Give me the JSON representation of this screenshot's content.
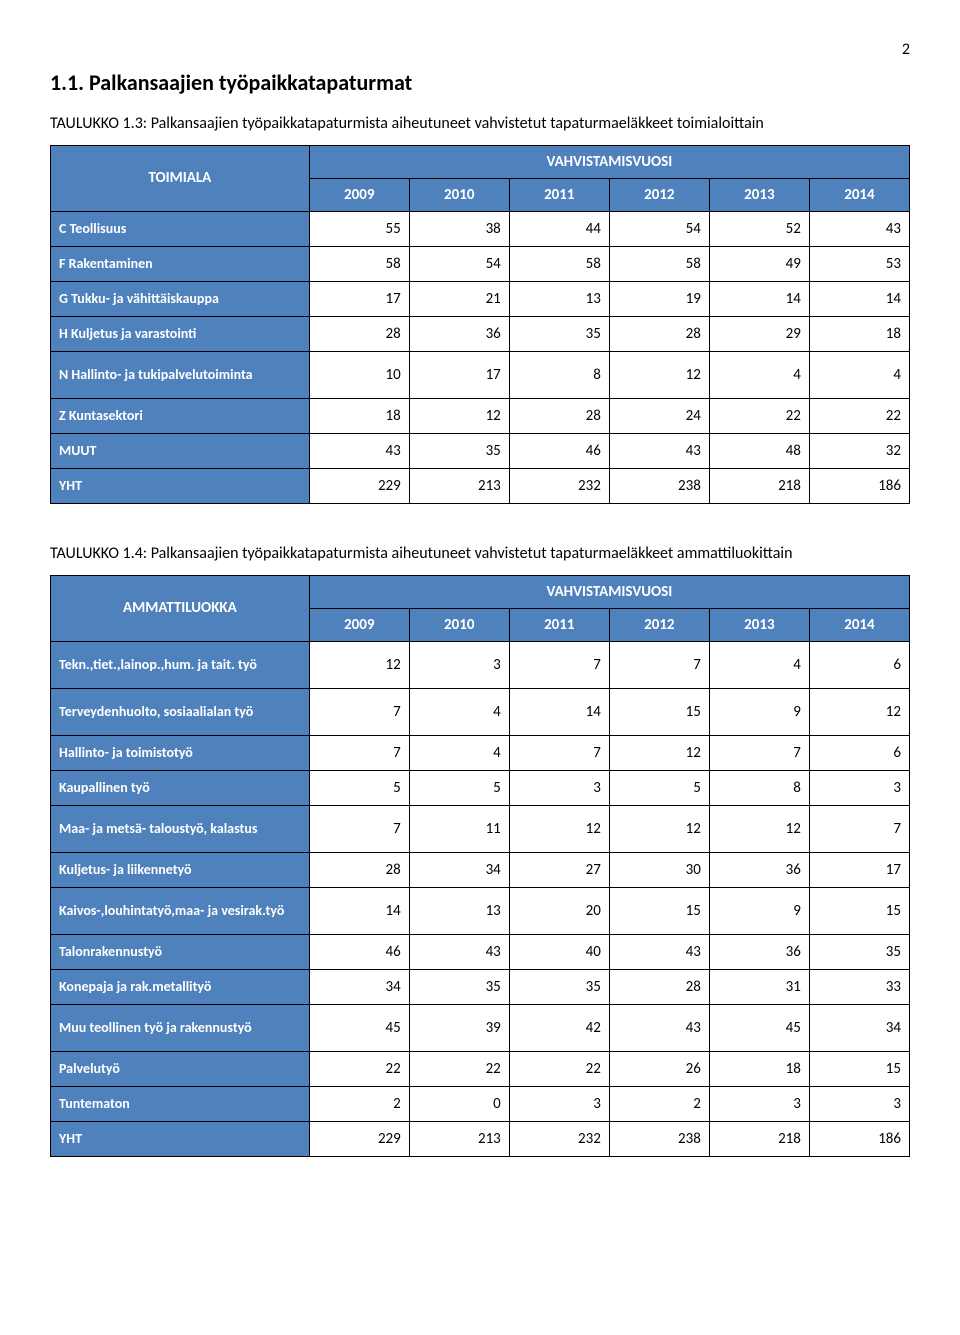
{
  "page_number": "2",
  "section_title": "1.1. Palkansaajien työpaikkatapaturmat",
  "table1": {
    "caption": "TAULUKKO 1.3: Palkansaajien työpaikkatapaturmista aiheutuneet vahvistetut tapaturmaeläkkeet toimialoittain",
    "row_header": "TOIMIALA",
    "group_header": "VAHVISTAMISVUOSI",
    "years": [
      "2009",
      "2010",
      "2011",
      "2012",
      "2013",
      "2014"
    ],
    "rows": [
      {
        "label": "C Teollisuus",
        "vals": [
          "55",
          "38",
          "44",
          "54",
          "52",
          "43"
        ]
      },
      {
        "label": "F Rakentaminen",
        "vals": [
          "58",
          "54",
          "58",
          "58",
          "49",
          "53"
        ]
      },
      {
        "label": "G Tukku- ja vähittäiskauppa",
        "vals": [
          "17",
          "21",
          "13",
          "19",
          "14",
          "14"
        ]
      },
      {
        "label": "H Kuljetus ja varastointi",
        "vals": [
          "28",
          "36",
          "35",
          "28",
          "29",
          "18"
        ]
      },
      {
        "label": "N Hallinto- ja tukipalvelutoiminta",
        "vals": [
          "10",
          "17",
          "8",
          "12",
          "4",
          "4"
        ],
        "tall": true
      },
      {
        "label": "Z Kuntasektori",
        "vals": [
          "18",
          "12",
          "28",
          "24",
          "22",
          "22"
        ]
      },
      {
        "label": "MUUT",
        "vals": [
          "43",
          "35",
          "46",
          "43",
          "48",
          "32"
        ]
      },
      {
        "label": "YHT",
        "vals": [
          "229",
          "213",
          "232",
          "238",
          "218",
          "186"
        ]
      }
    ]
  },
  "table2": {
    "caption": "TAULUKKO 1.4: Palkansaajien työpaikkatapaturmista aiheutuneet vahvistetut tapaturmaeläkkeet ammattiluokittain",
    "row_header": "AMMATTILUOKKA",
    "group_header": "VAHVISTAMISVUOSI",
    "years": [
      "2009",
      "2010",
      "2011",
      "2012",
      "2013",
      "2014"
    ],
    "rows": [
      {
        "label": "Tekn.,tiet.,lainop.,hum. ja tait. työ",
        "vals": [
          "12",
          "3",
          "7",
          "7",
          "4",
          "6"
        ],
        "tall": true
      },
      {
        "label": "Terveydenhuolto, sosiaalialan työ",
        "vals": [
          "7",
          "4",
          "14",
          "15",
          "9",
          "12"
        ],
        "tall": true
      },
      {
        "label": "Hallinto- ja toimistotyö",
        "vals": [
          "7",
          "4",
          "7",
          "12",
          "7",
          "6"
        ]
      },
      {
        "label": "Kaupallinen työ",
        "vals": [
          "5",
          "5",
          "3",
          "5",
          "8",
          "3"
        ]
      },
      {
        "label": "Maa- ja metsä- taloustyö, kalastus",
        "vals": [
          "7",
          "11",
          "12",
          "12",
          "12",
          "7"
        ],
        "tall": true
      },
      {
        "label": "Kuljetus- ja liikennetyö",
        "vals": [
          "28",
          "34",
          "27",
          "30",
          "36",
          "17"
        ]
      },
      {
        "label": "Kaivos-,louhintatyö,maa- ja vesirak.työ",
        "vals": [
          "14",
          "13",
          "20",
          "15",
          "9",
          "15"
        ],
        "tall": true
      },
      {
        "label": "Talonrakennustyö",
        "vals": [
          "46",
          "43",
          "40",
          "43",
          "36",
          "35"
        ]
      },
      {
        "label": "Konepaja ja rak.metallityö",
        "vals": [
          "34",
          "35",
          "35",
          "28",
          "31",
          "33"
        ]
      },
      {
        "label": "Muu teollinen työ ja rakennustyö",
        "vals": [
          "45",
          "39",
          "42",
          "43",
          "45",
          "34"
        ],
        "tall": true
      },
      {
        "label": "Palvelutyö",
        "vals": [
          "22",
          "22",
          "22",
          "26",
          "18",
          "15"
        ]
      },
      {
        "label": "Tuntematon",
        "vals": [
          "2",
          "0",
          "3",
          "2",
          "3",
          "3"
        ]
      },
      {
        "label": "YHT",
        "vals": [
          "229",
          "213",
          "232",
          "238",
          "218",
          "186"
        ]
      }
    ]
  },
  "style": {
    "header_bg": "#4f81bd",
    "header_fg": "#ffffff",
    "border_color": "#000000",
    "body_font": "Calibri"
  }
}
